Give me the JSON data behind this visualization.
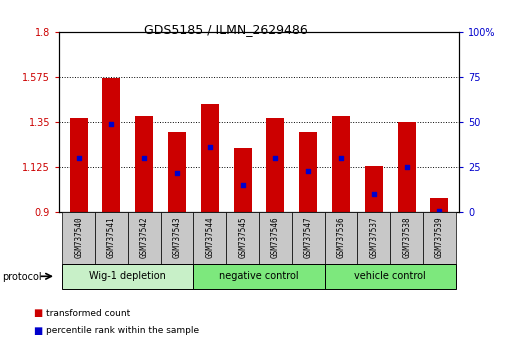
{
  "title": "GDS5185 / ILMN_2629486",
  "samples": [
    "GSM737540",
    "GSM737541",
    "GSM737542",
    "GSM737543",
    "GSM737544",
    "GSM737545",
    "GSM737546",
    "GSM737547",
    "GSM737536",
    "GSM737537",
    "GSM737538",
    "GSM737539"
  ],
  "bar_values": [
    1.37,
    1.57,
    1.38,
    1.3,
    1.44,
    1.22,
    1.37,
    1.3,
    1.38,
    1.13,
    1.35,
    0.97
  ],
  "percentile_values": [
    30,
    49,
    30,
    22,
    36,
    15,
    30,
    23,
    30,
    10,
    25,
    1
  ],
  "bar_base": 0.9,
  "ymin": 0.9,
  "ymax": 1.8,
  "yticks_left": [
    0.9,
    1.125,
    1.35,
    1.575,
    1.8
  ],
  "ytick_labels_left": [
    "0.9",
    "1.125",
    "1.35",
    "1.575",
    "1.8"
  ],
  "yticks_right_vals": [
    0,
    25,
    50,
    75,
    100
  ],
  "ytick_labels_right": [
    "0",
    "25",
    "50",
    "75",
    "100%"
  ],
  "groups": [
    {
      "label": "Wig-1 depletion",
      "indices": [
        0,
        1,
        2,
        3
      ],
      "color": "#c8f0c8"
    },
    {
      "label": "negative control",
      "indices": [
        4,
        5,
        6,
        7
      ],
      "color": "#7de87d"
    },
    {
      "label": "vehicle control",
      "indices": [
        8,
        9,
        10,
        11
      ],
      "color": "#7de87d"
    }
  ],
  "bar_color": "#cc0000",
  "dot_color": "#0000cc",
  "plot_bg_color": "#ffffff",
  "xlabel_gray_bg": "#c8c8c8",
  "bar_width": 0.55,
  "legend_items": [
    {
      "color": "#cc0000",
      "label": "transformed count"
    },
    {
      "color": "#0000cc",
      "label": "percentile rank within the sample"
    }
  ]
}
